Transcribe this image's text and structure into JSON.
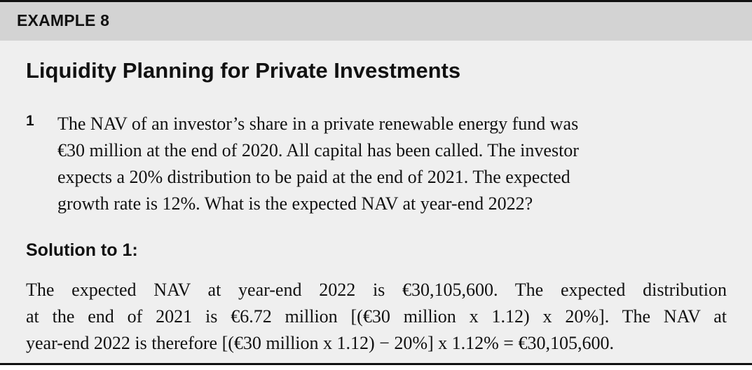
{
  "header": {
    "label": "EXAMPLE 8"
  },
  "title": "Liquidity Planning for Private Investments",
  "question": {
    "number": "1",
    "lines": [
      "The NAV of an investor’s share in a private renewable energy fund was",
      "€30 million at the end of 2020. All capital has been called. The investor",
      "expects a 20% distribution to be paid at the end of 2021. The expected",
      "growth rate is 12%. What is the expected NAV at year-end 2022?"
    ]
  },
  "solution": {
    "heading": "Solution to 1:",
    "lines": [
      "The expected NAV at year-end 2022 is €30,105,600. The expected distribution",
      "at the end of 2021 is €6.72 million [(€30 million x 1.12) x 20%]. The NAV at",
      "year-end 2022 is therefore [(€30 million x 1.12) − 20%] x 1.12% = €30,105,600."
    ]
  }
}
